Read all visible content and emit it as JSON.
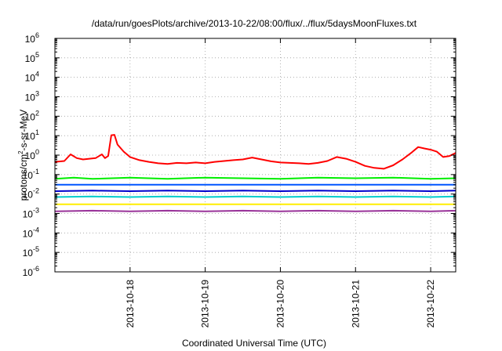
{
  "chart_data": {
    "type": "line",
    "title": "/data/run/goesPlots/archive/2013-10-22/08:00/flux/../flux/5daysMoonFluxes.txt",
    "xlabel": "Coordinated Universal Time (UTC)",
    "ylabel": {
      "base": "protons/cm",
      "sup": "2",
      "rest": "-s-sr-MeV"
    },
    "yscale": "log",
    "ylim": [
      1e-06,
      1000000.0
    ],
    "y_ticks": [
      {
        "value": 1e-06,
        "base": "10",
        "exp": "-6"
      },
      {
        "value": 1e-05,
        "base": "10",
        "exp": "-5"
      },
      {
        "value": 0.0001,
        "base": "10",
        "exp": "-4"
      },
      {
        "value": 0.001,
        "base": "10",
        "exp": "-3"
      },
      {
        "value": 0.01,
        "base": "10",
        "exp": "-2"
      },
      {
        "value": 0.1,
        "base": "10",
        "exp": "-1"
      },
      {
        "value": 1,
        "base": "10",
        "exp": "0"
      },
      {
        "value": 10,
        "base": "10",
        "exp": "1"
      },
      {
        "value": 100,
        "base": "10",
        "exp": "2"
      },
      {
        "value": 1000,
        "base": "10",
        "exp": "3"
      },
      {
        "value": 10000,
        "base": "10",
        "exp": "4"
      },
      {
        "value": 100000,
        "base": "10",
        "exp": "5"
      },
      {
        "value": 1000000,
        "base": "10",
        "exp": "6"
      }
    ],
    "xlim": [
      "2013-10-17 00:00",
      "2013-10-22 08:00"
    ],
    "x_ticks": [
      "2013-10-18",
      "2013-10-19",
      "2013-10-20",
      "2013-10-21",
      "2013-10-22"
    ],
    "grid": true,
    "series": [
      {
        "color": "#ff0000",
        "values": [
          [
            "2013-10-17 00:00",
            0.45
          ],
          [
            "2013-10-17 03:00",
            0.5
          ],
          [
            "2013-10-17 05:00",
            1.1
          ],
          [
            "2013-10-17 07:00",
            0.7
          ],
          [
            "2013-10-17 09:00",
            0.6
          ],
          [
            "2013-10-17 11:00",
            0.65
          ],
          [
            "2013-10-17 13:00",
            0.7
          ],
          [
            "2013-10-17 15:00",
            1.1
          ],
          [
            "2013-10-17 16:00",
            0.7
          ],
          [
            "2013-10-17 17:00",
            0.9
          ],
          [
            "2013-10-17 18:00",
            10.5
          ],
          [
            "2013-10-17 19:00",
            11
          ],
          [
            "2013-10-17 20:00",
            3.5
          ],
          [
            "2013-10-17 22:00",
            1.5
          ],
          [
            "2013-10-18 00:00",
            0.8
          ],
          [
            "2013-10-18 03:00",
            0.55
          ],
          [
            "2013-10-18 06:00",
            0.45
          ],
          [
            "2013-10-18 09:00",
            0.38
          ],
          [
            "2013-10-18 12:00",
            0.35
          ],
          [
            "2013-10-18 15:00",
            0.4
          ],
          [
            "2013-10-18 18:00",
            0.38
          ],
          [
            "2013-10-18 21:00",
            0.42
          ],
          [
            "2013-10-19 00:00",
            0.38
          ],
          [
            "2013-10-19 03:00",
            0.45
          ],
          [
            "2013-10-19 06:00",
            0.5
          ],
          [
            "2013-10-19 09:00",
            0.55
          ],
          [
            "2013-10-19 12:00",
            0.6
          ],
          [
            "2013-10-19 15:00",
            0.75
          ],
          [
            "2013-10-19 18:00",
            0.6
          ],
          [
            "2013-10-19 21:00",
            0.48
          ],
          [
            "2013-10-20 00:00",
            0.42
          ],
          [
            "2013-10-20 03:00",
            0.4
          ],
          [
            "2013-10-20 06:00",
            0.38
          ],
          [
            "2013-10-20 09:00",
            0.35
          ],
          [
            "2013-10-20 12:00",
            0.4
          ],
          [
            "2013-10-20 15:00",
            0.5
          ],
          [
            "2013-10-20 18:00",
            0.8
          ],
          [
            "2013-10-20 21:00",
            0.65
          ],
          [
            "2013-10-21 00:00",
            0.45
          ],
          [
            "2013-10-21 03:00",
            0.28
          ],
          [
            "2013-10-21 06:00",
            0.22
          ],
          [
            "2013-10-21 09:00",
            0.2
          ],
          [
            "2013-10-21 12:00",
            0.3
          ],
          [
            "2013-10-21 15:00",
            0.6
          ],
          [
            "2013-10-21 18:00",
            1.4
          ],
          [
            "2013-10-21 20:00",
            2.6
          ],
          [
            "2013-10-21 22:00",
            2.2
          ],
          [
            "2013-10-22 00:00",
            1.9
          ],
          [
            "2013-10-22 02:00",
            1.5
          ],
          [
            "2013-10-22 04:00",
            0.8
          ],
          [
            "2013-10-22 06:00",
            0.9
          ],
          [
            "2013-10-22 08:00",
            1.3
          ]
        ]
      },
      {
        "color": "#00ee00",
        "values": [
          [
            "2013-10-17 00:00",
            0.06
          ],
          [
            "2013-10-17 06:00",
            0.07
          ],
          [
            "2013-10-17 12:00",
            0.06
          ],
          [
            "2013-10-18 00:00",
            0.07
          ],
          [
            "2013-10-18 12:00",
            0.06
          ],
          [
            "2013-10-19 00:00",
            0.07
          ],
          [
            "2013-10-19 12:00",
            0.065
          ],
          [
            "2013-10-20 00:00",
            0.06
          ],
          [
            "2013-10-20 12:00",
            0.07
          ],
          [
            "2013-10-21 00:00",
            0.065
          ],
          [
            "2013-10-21 12:00",
            0.07
          ],
          [
            "2013-10-22 00:00",
            0.06
          ],
          [
            "2013-10-22 08:00",
            0.065
          ]
        ]
      },
      {
        "color": "#0055ff",
        "values": [
          [
            "2013-10-17 00:00",
            0.03
          ],
          [
            "2013-10-17 12:00",
            0.03
          ],
          [
            "2013-10-18 00:00",
            0.03
          ],
          [
            "2013-10-18 12:00",
            0.03
          ],
          [
            "2013-10-19 00:00",
            0.03
          ],
          [
            "2013-10-19 12:00",
            0.03
          ],
          [
            "2013-10-20 00:00",
            0.03
          ],
          [
            "2013-10-20 12:00",
            0.03
          ],
          [
            "2013-10-21 00:00",
            0.03
          ],
          [
            "2013-10-21 12:00",
            0.03
          ],
          [
            "2013-10-22 00:00",
            0.03
          ],
          [
            "2013-10-22 08:00",
            0.03
          ]
        ]
      },
      {
        "color": "#0000cc",
        "values": [
          [
            "2013-10-17 00:00",
            0.014
          ],
          [
            "2013-10-17 12:00",
            0.015
          ],
          [
            "2013-10-18 00:00",
            0.014
          ],
          [
            "2013-10-18 12:00",
            0.015
          ],
          [
            "2013-10-19 00:00",
            0.014
          ],
          [
            "2013-10-19 12:00",
            0.015
          ],
          [
            "2013-10-20 00:00",
            0.014
          ],
          [
            "2013-10-20 12:00",
            0.015
          ],
          [
            "2013-10-21 00:00",
            0.014
          ],
          [
            "2013-10-21 12:00",
            0.015
          ],
          [
            "2013-10-22 00:00",
            0.014
          ],
          [
            "2013-10-22 08:00",
            0.015
          ]
        ]
      },
      {
        "color": "#00cccc",
        "values": [
          [
            "2013-10-17 00:00",
            0.007
          ],
          [
            "2013-10-17 12:00",
            0.0075
          ],
          [
            "2013-10-18 00:00",
            0.007
          ],
          [
            "2013-10-18 12:00",
            0.0075
          ],
          [
            "2013-10-19 00:00",
            0.007
          ],
          [
            "2013-10-19 12:00",
            0.0075
          ],
          [
            "2013-10-20 00:00",
            0.007
          ],
          [
            "2013-10-20 12:00",
            0.0075
          ],
          [
            "2013-10-21 00:00",
            0.007
          ],
          [
            "2013-10-21 12:00",
            0.0075
          ],
          [
            "2013-10-22 00:00",
            0.007
          ],
          [
            "2013-10-22 08:00",
            0.0075
          ]
        ]
      },
      {
        "color": "#ffee00",
        "values": [
          [
            "2013-10-17 00:00",
            0.003
          ],
          [
            "2013-10-17 12:00",
            0.003
          ],
          [
            "2013-10-18 00:00",
            0.003
          ],
          [
            "2013-10-18 12:00",
            0.003
          ],
          [
            "2013-10-19 00:00",
            0.003
          ],
          [
            "2013-10-19 12:00",
            0.003
          ],
          [
            "2013-10-20 00:00",
            0.003
          ],
          [
            "2013-10-20 12:00",
            0.003
          ],
          [
            "2013-10-21 00:00",
            0.003
          ],
          [
            "2013-10-21 12:00",
            0.003
          ],
          [
            "2013-10-22 00:00",
            0.003
          ],
          [
            "2013-10-22 08:00",
            0.003
          ]
        ]
      },
      {
        "color": "#993399",
        "values": [
          [
            "2013-10-17 00:00",
            0.0013
          ],
          [
            "2013-10-17 12:00",
            0.0014
          ],
          [
            "2013-10-18 00:00",
            0.0013
          ],
          [
            "2013-10-18 12:00",
            0.0014
          ],
          [
            "2013-10-19 00:00",
            0.0013
          ],
          [
            "2013-10-19 12:00",
            0.0014
          ],
          [
            "2013-10-20 00:00",
            0.0013
          ],
          [
            "2013-10-20 12:00",
            0.0014
          ],
          [
            "2013-10-21 00:00",
            0.0013
          ],
          [
            "2013-10-21 12:00",
            0.0014
          ],
          [
            "2013-10-22 00:00",
            0.0013
          ],
          [
            "2013-10-22 08:00",
            0.0014
          ]
        ]
      }
    ]
  }
}
